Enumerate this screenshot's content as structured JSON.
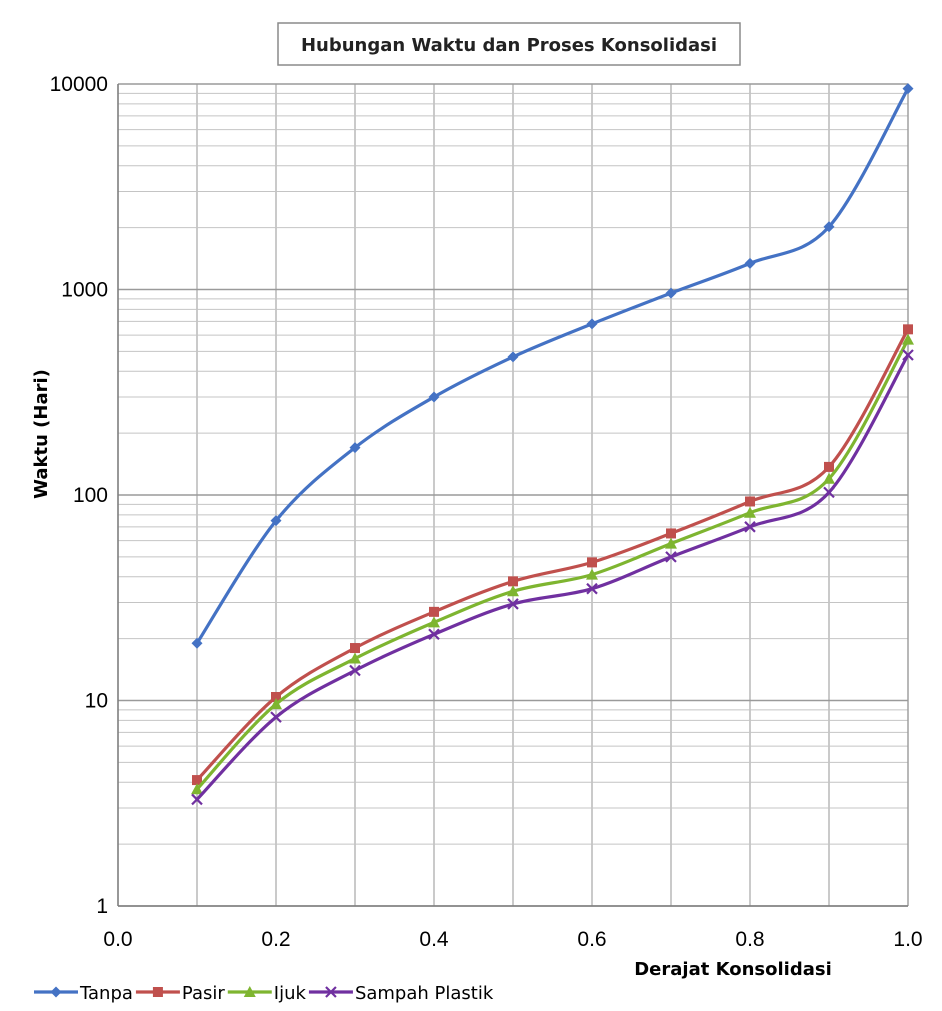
{
  "chart_data": {
    "type": "line",
    "title": "Hubungan Waktu dan Proses Konsolidasi",
    "xlabel": "Derajat Konsolidasi",
    "ylabel": "Waktu (Hari)",
    "y_scale": "log",
    "xlim": [
      0.0,
      1.0
    ],
    "ylim": [
      1,
      10000
    ],
    "x_ticks": [
      "0.0",
      "0.2",
      "0.4",
      "0.6",
      "0.8",
      "1.0"
    ],
    "y_ticks": [
      "1",
      "10",
      "100",
      "1000",
      "10000"
    ],
    "grid": true,
    "legend_position": "bottom",
    "x": [
      0.1,
      0.2,
      0.3,
      0.4,
      0.5,
      0.6,
      0.7,
      0.8,
      0.9,
      1.0
    ],
    "series": [
      {
        "name": "Tanpa",
        "color": "#4472C4",
        "marker": "diamond",
        "values": [
          19,
          75,
          170,
          300,
          470,
          680,
          960,
          1340,
          2020,
          9500
        ]
      },
      {
        "name": "Pasir",
        "color": "#C0504D",
        "marker": "square",
        "values": [
          4.1,
          10.4,
          18,
          27,
          38,
          47,
          65,
          93,
          137,
          640
        ]
      },
      {
        "name": "Ijuk",
        "color": "#7EB530",
        "marker": "triangle",
        "values": [
          3.7,
          9.6,
          16,
          24,
          34,
          41,
          58,
          82,
          120,
          570
        ]
      },
      {
        "name": "Sampah Plastik",
        "color": "#7030A0",
        "marker": "x",
        "values": [
          3.3,
          8.3,
          14,
          21,
          29.5,
          35,
          50,
          70,
          103,
          480
        ]
      }
    ]
  }
}
